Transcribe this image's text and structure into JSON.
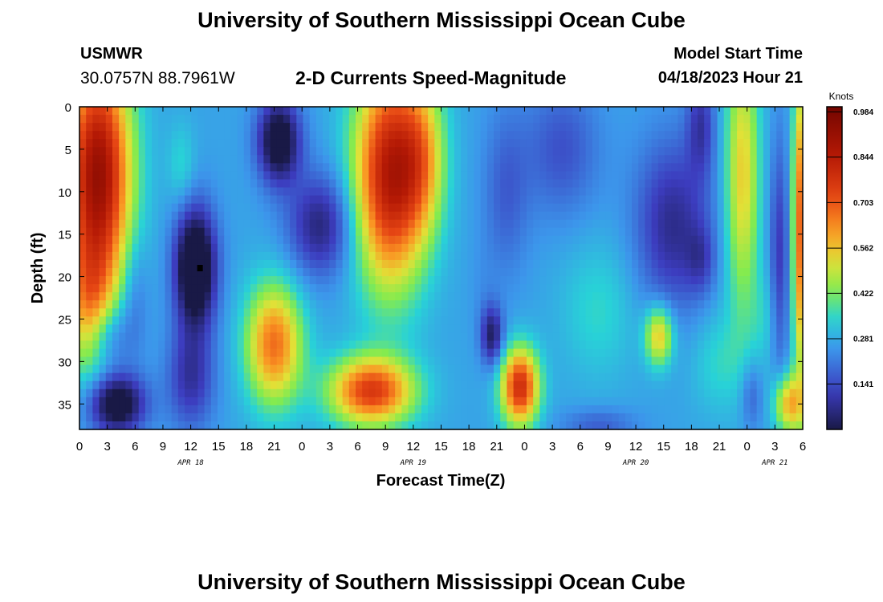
{
  "header": {
    "title": "University of Southern Mississippi Ocean Cube",
    "station_id": "USMWR",
    "coordinates": "30.0757N  88.7961W",
    "plot_title": "2-D Currents Speed-Magnitude",
    "model_start_label": "Model Start Time",
    "model_start_value": "04/18/2023 Hour 21"
  },
  "footer": {
    "title": "University of Southern Mississippi Ocean Cube"
  },
  "chart_data": {
    "type": "heatmap",
    "title": "2-D Currents Speed-Magnitude",
    "xlabel": "Forecast Time(Z)",
    "ylabel": "Depth (ft)",
    "x_unit": "hours from Apr 18 00Z",
    "xlim": [
      0,
      78
    ],
    "ylim": [
      0,
      38
    ],
    "y_reversed": true,
    "x_ticks": [
      0,
      3,
      6,
      9,
      12,
      15,
      18,
      21,
      24,
      27,
      30,
      33,
      36,
      39,
      42,
      45,
      48,
      51,
      54,
      57,
      60,
      63,
      66,
      69,
      72,
      75,
      78
    ],
    "x_tick_labels": [
      "0",
      "3",
      "6",
      "9",
      "12",
      "15",
      "18",
      "21",
      "0",
      "3",
      "6",
      "9",
      "12",
      "15",
      "18",
      "21",
      "0",
      "3",
      "6",
      "9",
      "12",
      "15",
      "18",
      "21",
      "0",
      "3",
      "6"
    ],
    "y_ticks": [
      0,
      5,
      10,
      15,
      20,
      25,
      30,
      35
    ],
    "y_tick_labels": [
      "0",
      "5",
      "10",
      "15",
      "20",
      "25",
      "30",
      "35"
    ],
    "date_labels": [
      {
        "x": 12,
        "label": "APR 18"
      },
      {
        "x": 36,
        "label": "APR 19"
      },
      {
        "x": 60,
        "label": "APR 20"
      },
      {
        "x": 75,
        "label": "APR 21"
      }
    ],
    "colorbar": {
      "title": "Knots",
      "range": [
        0,
        1.0
      ],
      "ticks": [
        0.141,
        0.281,
        0.422,
        0.562,
        0.703,
        0.844,
        0.984
      ],
      "tick_labels": [
        "0.141",
        "0.281",
        "0.422",
        "0.562",
        "0.703",
        "0.844",
        "0.984"
      ]
    },
    "grid": false,
    "features": [
      {
        "x": 2,
        "y": 8,
        "sx": 3.5,
        "sy": 14,
        "amp": 0.65
      },
      {
        "x": 1,
        "y": 24,
        "sx": 2.5,
        "sy": 8,
        "amp": 0.25
      },
      {
        "x": 3,
        "y": 27,
        "sx": 2.5,
        "sy": 4,
        "amp": -0.15
      },
      {
        "x": 4,
        "y": 35,
        "sx": 3,
        "sy": 3.5,
        "amp": -0.35
      },
      {
        "x": 6,
        "y": 22,
        "sx": 1.5,
        "sy": 7,
        "amp": -0.08
      },
      {
        "x": 12.5,
        "y": 19,
        "sx": 2.2,
        "sy": 7,
        "amp": -0.42
      },
      {
        "x": 12,
        "y": 32,
        "sx": 2.5,
        "sy": 6,
        "amp": -0.18
      },
      {
        "x": 11,
        "y": 7,
        "sx": 1.5,
        "sy": 5,
        "amp": 0.08
      },
      {
        "x": 21,
        "y": 28,
        "sx": 3,
        "sy": 7,
        "amp": 0.4
      },
      {
        "x": 21.5,
        "y": 4,
        "sx": 2.3,
        "sy": 5,
        "amp": -0.34
      },
      {
        "x": 26,
        "y": 14,
        "sx": 3.5,
        "sy": 6,
        "amp": -0.22
      },
      {
        "x": 31.5,
        "y": 33.5,
        "sx": 4.5,
        "sy": 4,
        "amp": 0.48
      },
      {
        "x": 33.5,
        "y": 8,
        "sx": 3.8,
        "sy": 13,
        "amp": 0.58
      },
      {
        "x": 37,
        "y": 6,
        "sx": 2.5,
        "sy": 9,
        "amp": 0.22
      },
      {
        "x": 43.5,
        "y": 22,
        "sx": 1.5,
        "sy": 6,
        "amp": -0.02
      },
      {
        "x": 44.5,
        "y": 27,
        "sx": 1.2,
        "sy": 3.5,
        "amp": -0.24
      },
      {
        "x": 46,
        "y": 10,
        "sx": 2.5,
        "sy": 10,
        "amp": -0.1
      },
      {
        "x": 47.5,
        "y": 33,
        "sx": 2,
        "sy": 4.5,
        "amp": 0.52
      },
      {
        "x": 52,
        "y": 5,
        "sx": 4,
        "sy": 8,
        "amp": -0.12
      },
      {
        "x": 56,
        "y": 24,
        "sx": 4,
        "sy": 8,
        "amp": 0.08
      },
      {
        "x": 56,
        "y": 37.5,
        "sx": 4,
        "sy": 2,
        "amp": -0.1
      },
      {
        "x": 62.5,
        "y": 27,
        "sx": 1.5,
        "sy": 3.5,
        "amp": 0.3
      },
      {
        "x": 64,
        "y": 14,
        "sx": 4,
        "sy": 10,
        "amp": -0.2
      },
      {
        "x": 67,
        "y": 2,
        "sx": 1.5,
        "sy": 6,
        "amp": -0.16
      },
      {
        "x": 67,
        "y": 18,
        "sx": 1.5,
        "sy": 4,
        "amp": -0.1
      },
      {
        "x": 69,
        "y": 30,
        "sx": 3,
        "sy": 6,
        "amp": 0.08
      },
      {
        "x": 71.5,
        "y": 8,
        "sx": 1.8,
        "sy": 16,
        "amp": 0.28
      },
      {
        "x": 72.5,
        "y": 34,
        "sx": 1.2,
        "sy": 4,
        "amp": -0.1
      },
      {
        "x": 74,
        "y": 25,
        "sx": 1.8,
        "sy": 6,
        "amp": 0.06
      },
      {
        "x": 75.5,
        "y": 18,
        "sx": 1.1,
        "sy": 14,
        "amp": -0.16
      },
      {
        "x": 76.5,
        "y": 35,
        "sx": 1.6,
        "sy": 3.5,
        "amp": 0.32
      },
      {
        "x": 77.8,
        "y": 14,
        "sx": 0.9,
        "sy": 18,
        "amp": 0.42
      }
    ],
    "base_value": 0.27,
    "marker": {
      "x": 13,
      "y": 19
    }
  }
}
